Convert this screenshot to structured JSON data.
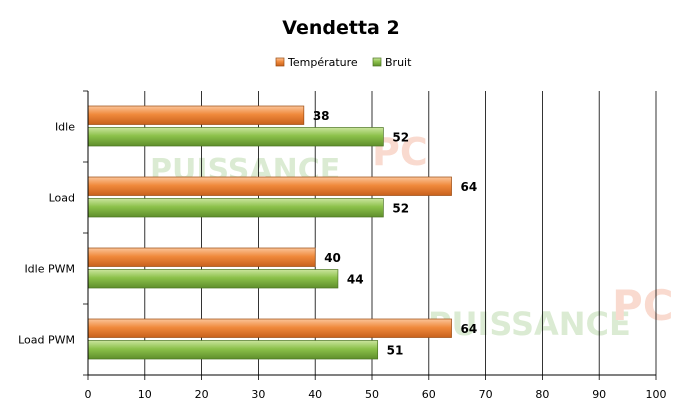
{
  "chart_data": {
    "type": "bar",
    "orientation": "horizontal",
    "title": "Vendetta 2",
    "categories": [
      "Idle",
      "Load",
      "Idle PWM",
      "Load PWM"
    ],
    "series": [
      {
        "name": "Température",
        "values": [
          38,
          64,
          40,
          64
        ],
        "color": "#f08a3c"
      },
      {
        "name": "Bruit",
        "values": [
          52,
          52,
          44,
          51
        ],
        "color": "#8cc14a"
      }
    ],
    "xlim": [
      0,
      100
    ],
    "xticks": [
      0,
      10,
      20,
      30,
      40,
      50,
      60,
      70,
      80,
      90,
      100
    ],
    "grid": true,
    "legend_position": "top-center",
    "watermark": "PUISSANCE-PC"
  }
}
